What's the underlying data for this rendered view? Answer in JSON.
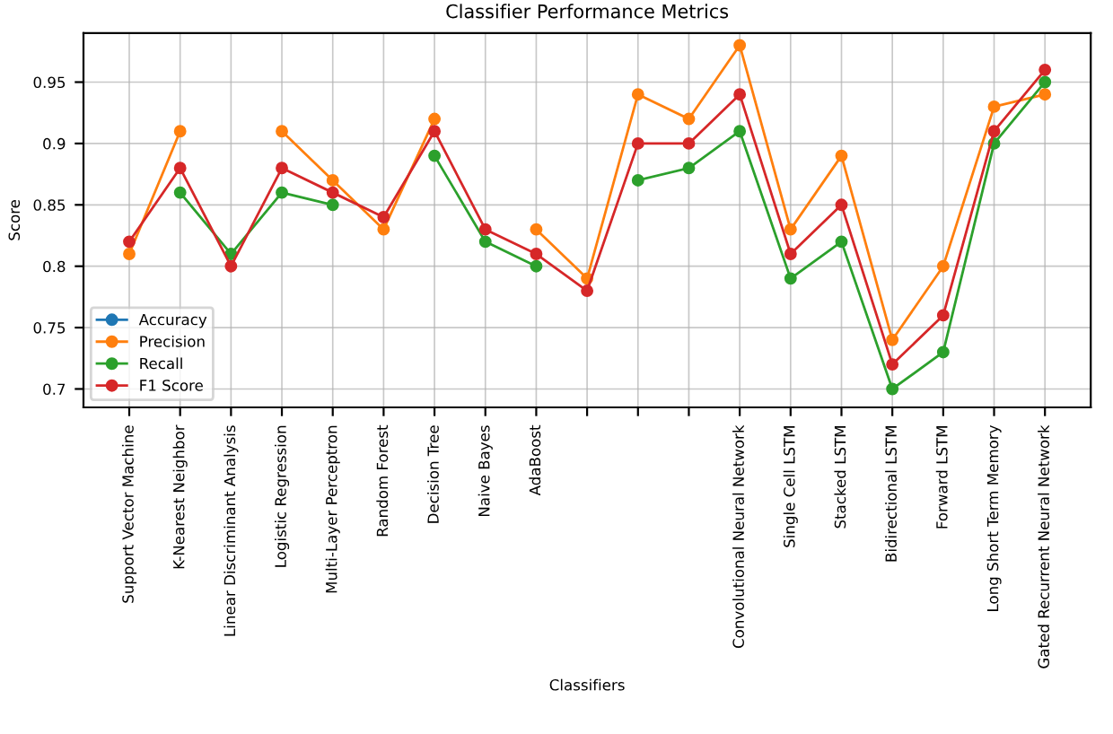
{
  "chart_data": {
    "type": "line",
    "title": "Classifier Performance Metrics",
    "xlabel": "Classifiers",
    "ylabel": "Score",
    "categories": [
      "Support Vector Machine",
      "K-Nearest Neighbor",
      "Linear Discriminant Analysis",
      "Logistic Regression",
      "Multi-Layer Perceptron",
      "Random Forest",
      "Decision Tree",
      "Naive Bayes",
      "AdaBoost",
      null,
      null,
      null,
      "Convolutional Neural Network",
      "Single Cell LSTM",
      "Stacked LSTM",
      "Bidirectional LSTM",
      "Forward LSTM",
      "Long Short Term Memory",
      "Gated Recurrent Neural Network"
    ],
    "series": [
      {
        "name": "Accuracy",
        "color": "#1f77b4",
        "values": [
          null,
          null,
          null,
          null,
          null,
          null,
          null,
          null,
          null,
          null,
          null,
          null,
          null,
          null,
          null,
          null,
          null,
          null,
          null
        ]
      },
      {
        "name": "Precision",
        "color": "#ff7f0e",
        "values": [
          0.81,
          0.91,
          null,
          0.91,
          0.87,
          0.83,
          0.92,
          null,
          0.83,
          0.79,
          0.94,
          0.92,
          0.98,
          0.83,
          0.89,
          0.74,
          0.8,
          0.93,
          0.94
        ]
      },
      {
        "name": "Recall",
        "color": "#2ca02c",
        "values": [
          null,
          0.86,
          0.81,
          0.86,
          0.85,
          null,
          0.89,
          0.82,
          0.8,
          null,
          0.87,
          0.88,
          0.91,
          0.79,
          0.82,
          0.7,
          0.73,
          0.9,
          0.95
        ]
      },
      {
        "name": "F1 Score",
        "color": "#d62728",
        "values": [
          0.82,
          0.88,
          0.8,
          0.88,
          0.86,
          0.84,
          0.91,
          0.83,
          0.81,
          0.78,
          0.9,
          0.9,
          0.94,
          0.81,
          0.85,
          0.72,
          0.76,
          0.91,
          0.96
        ]
      }
    ],
    "ylim": [
      0.685,
      0.99
    ],
    "yticks": [
      0.7,
      0.75,
      0.8,
      0.85,
      0.9,
      0.95
    ],
    "grid": true,
    "legend": "bottom left",
    "marker": "circle",
    "line_style": "solid"
  }
}
